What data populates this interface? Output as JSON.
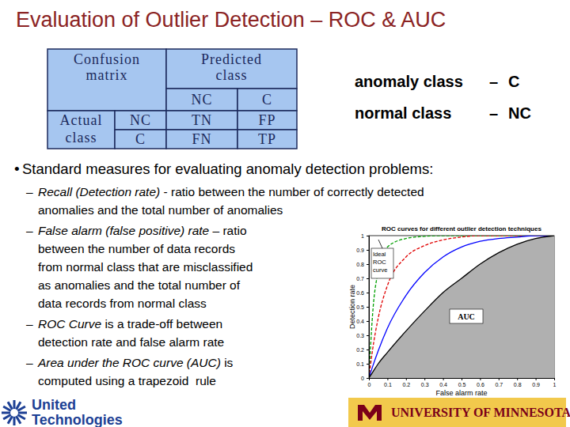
{
  "title": "Evaluation of Outlier Detection – ROC & AUC",
  "confusion_matrix": {
    "corner": [
      "Confusion",
      "matrix"
    ],
    "predicted": [
      "Predicted",
      "class"
    ],
    "actual": [
      "Actual",
      "class"
    ],
    "columns": [
      "NC",
      "C"
    ],
    "rows": [
      {
        "label": "NC",
        "cells": [
          "TN",
          "FP"
        ]
      },
      {
        "label": "C",
        "cells": [
          "FN",
          "TP"
        ]
      }
    ]
  },
  "class_key": [
    {
      "name": "anomaly class",
      "sep": "–",
      "code": "C"
    },
    {
      "name": "normal class",
      "sep": "–",
      "code": "NC"
    }
  ],
  "bullet": "•",
  "intro": "Standard measures for evaluating anomaly detection problems:",
  "dash": "–",
  "items": [
    {
      "term": "Recall (Detection rate)",
      "text": [
        " - ratio between the number of correctly detected",
        "anomalies and the total number of anomalies"
      ]
    },
    {
      "term": "False alarm (false positive) rate",
      "text": [
        " – ratio",
        "between the number of data records",
        "from normal class that are misclassified",
        "as anomalies and the total number of",
        "data records from normal class"
      ]
    },
    {
      "term": "ROC Curve",
      "text": [
        " is a trade-off between",
        "detection rate and false alarm rate"
      ]
    },
    {
      "term": "Area under the ROC curve (AUC)",
      "text": [
        " is",
        "computed using a trapezoid  rule"
      ]
    }
  ],
  "logos": {
    "left": [
      "United",
      "Technologies"
    ],
    "right": "UNIVERSITY OF MINNESOTA"
  },
  "chart_data": {
    "type": "line",
    "title": "ROC curves for different outlier detection techniques",
    "x_label": "False alarm rate",
    "y_label": "Detection rate",
    "x": [
      0,
      0.02,
      0.05,
      0.1,
      0.2,
      0.3,
      0.4,
      0.5,
      0.6,
      0.7,
      0.8,
      0.9,
      1
    ],
    "series": [
      {
        "color": "#00a000",
        "line_style": "dashed",
        "values": [
          0,
          0.45,
          0.75,
          0.92,
          0.98,
          0.995,
          1,
          1,
          1,
          1,
          1,
          1,
          1
        ]
      },
      {
        "color": "#e00000",
        "line_style": "dashed",
        "values": [
          0,
          0.2,
          0.42,
          0.65,
          0.85,
          0.93,
          0.97,
          0.99,
          1,
          1,
          1,
          1,
          1
        ]
      },
      {
        "color": "#0000ff",
        "line_style": "solid",
        "values": [
          0,
          0.08,
          0.19,
          0.35,
          0.58,
          0.74,
          0.85,
          0.92,
          0.96,
          0.98,
          0.99,
          1,
          1
        ]
      },
      {
        "type": "area",
        "color": "#000000",
        "line_style": "solid",
        "values": [
          0,
          0.04,
          0.1,
          0.18,
          0.33,
          0.47,
          0.6,
          0.7,
          0.8,
          0.88,
          0.94,
          0.98,
          1
        ]
      }
    ],
    "xlim": [
      0,
      1
    ],
    "ylim": [
      0,
      1
    ],
    "xticks": [
      0,
      0.1,
      0.2,
      0.3,
      0.4,
      0.5,
      0.6,
      0.7,
      0.8,
      0.9,
      1
    ],
    "yticks": [
      0,
      0.1,
      0.2,
      0.3,
      0.4,
      0.5,
      0.6,
      0.7,
      0.8,
      0.9,
      1
    ],
    "annotations": [
      {
        "text": [
          "Ideal",
          "ROC",
          "curve"
        ]
      },
      {
        "text": [
          "AUC"
        ]
      }
    ]
  }
}
